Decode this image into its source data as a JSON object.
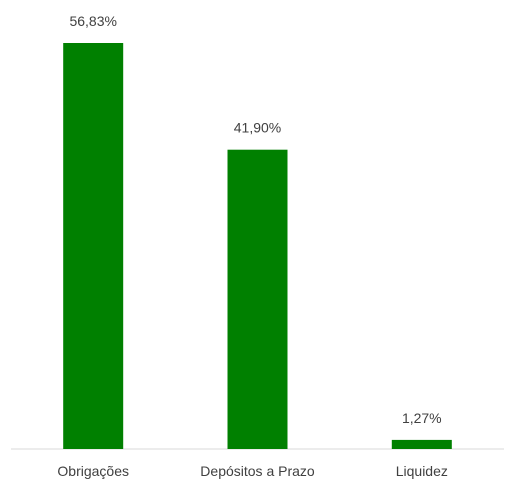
{
  "chart_data": {
    "type": "bar",
    "title": "",
    "xlabel": "",
    "ylabel": "",
    "categories": [
      "Obrigações",
      "Depósitos a Prazo",
      "Liquidez"
    ],
    "values": [
      56.83,
      41.9,
      1.27
    ],
    "data_labels": [
      "56,83%",
      "41,90%",
      "1,27%"
    ],
    "ylim": [
      0,
      56.83
    ],
    "grid": false,
    "legend": "none",
    "colors": {
      "bar": "#008000",
      "axis": "#d9d9d9",
      "label": "#404040"
    }
  }
}
